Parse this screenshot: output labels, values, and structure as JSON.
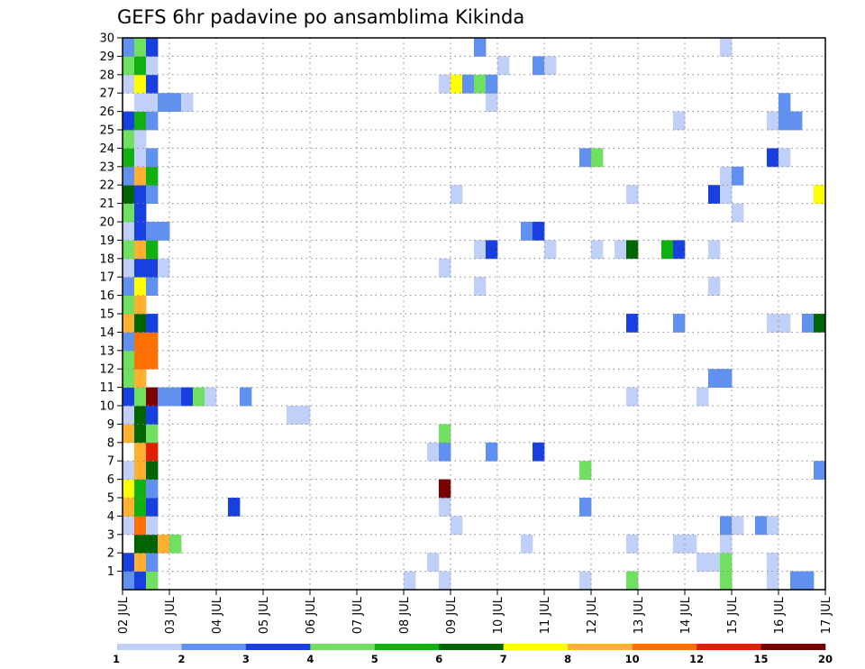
{
  "chart_data": {
    "type": "heatmap",
    "title": "GEFS 6hr padavine po ansamblima Kikinda",
    "x_tick_labels": [
      "02 JUL",
      "03 JUL",
      "04 JUL",
      "05 JUL",
      "06 JUL",
      "07 JUL",
      "08 JUL",
      "09 JUL",
      "10 JUL",
      "11 JUL",
      "12 JUL",
      "13 JUL",
      "14 JUL",
      "15 JUL",
      "16 JUL",
      "17 JUL"
    ],
    "y_tick_labels": [
      "1",
      "2",
      "3",
      "4",
      "5",
      "6",
      "7",
      "8",
      "9",
      "10",
      "11",
      "12",
      "13",
      "14",
      "15",
      "16",
      "17",
      "18",
      "19",
      "20",
      "21",
      "22",
      "23",
      "24",
      "25",
      "26",
      "27",
      "28",
      "29",
      "30"
    ],
    "y_range": [
      0,
      30
    ],
    "time_steps": 60,
    "steps_per_day": 4,
    "grid": "dotted",
    "legend": {
      "position": "bottom",
      "labels": [
        "1",
        "2",
        "3",
        "4",
        "5",
        "6",
        "7",
        "8",
        "10",
        "12",
        "15",
        "20"
      ],
      "colors": [
        "#c0d0f8",
        "#6090f0",
        "#1840e0",
        "#70e060",
        "#10b010",
        "#006400",
        "#ffff00",
        "#ffb030",
        "#ff7000",
        "#e02000",
        "#7a0000"
      ]
    },
    "cells": [
      [
        0,
        0,
        2
      ],
      [
        1,
        0,
        3
      ],
      [
        2,
        0,
        4
      ],
      [
        24,
        0,
        1
      ],
      [
        27,
        0,
        1
      ],
      [
        39,
        0,
        1
      ],
      [
        43,
        0,
        4
      ],
      [
        51,
        0,
        4
      ],
      [
        55,
        0,
        1
      ],
      [
        57,
        0,
        2
      ],
      [
        58,
        0,
        2
      ],
      [
        0,
        1,
        3
      ],
      [
        1,
        1,
        8
      ],
      [
        2,
        1,
        2
      ],
      [
        26,
        1,
        1
      ],
      [
        49,
        1,
        1
      ],
      [
        50,
        1,
        1
      ],
      [
        51,
        1,
        4
      ],
      [
        55,
        1,
        1
      ],
      [
        1,
        2,
        6
      ],
      [
        2,
        2,
        6
      ],
      [
        3,
        2,
        8
      ],
      [
        4,
        2,
        4
      ],
      [
        34,
        2,
        1
      ],
      [
        43,
        2,
        1
      ],
      [
        47,
        2,
        1
      ],
      [
        48,
        2,
        1
      ],
      [
        51,
        2,
        1
      ],
      [
        0,
        3,
        1
      ],
      [
        1,
        3,
        9
      ],
      [
        2,
        3,
        1
      ],
      [
        28,
        3,
        1
      ],
      [
        51,
        3,
        2
      ],
      [
        52,
        3,
        1
      ],
      [
        54,
        3,
        2
      ],
      [
        55,
        3,
        1
      ],
      [
        0,
        4,
        8
      ],
      [
        1,
        4,
        5
      ],
      [
        2,
        4,
        3
      ],
      [
        9,
        4,
        3
      ],
      [
        27,
        4,
        1
      ],
      [
        39,
        4,
        2
      ],
      [
        0,
        5,
        7
      ],
      [
        1,
        5,
        5
      ],
      [
        2,
        5,
        2
      ],
      [
        27,
        5,
        11
      ],
      [
        0,
        6,
        1
      ],
      [
        1,
        6,
        8
      ],
      [
        2,
        6,
        6
      ],
      [
        39,
        6,
        4
      ],
      [
        59,
        6,
        2
      ],
      [
        1,
        7,
        8
      ],
      [
        2,
        7,
        10
      ],
      [
        26,
        7,
        1
      ],
      [
        27,
        7,
        2
      ],
      [
        31,
        7,
        2
      ],
      [
        35,
        7,
        3
      ],
      [
        0,
        8,
        8
      ],
      [
        1,
        8,
        6
      ],
      [
        2,
        8,
        4
      ],
      [
        27,
        8,
        4
      ],
      [
        0,
        9,
        1
      ],
      [
        1,
        9,
        6
      ],
      [
        2,
        9,
        3
      ],
      [
        14,
        9,
        1
      ],
      [
        15,
        9,
        1
      ],
      [
        0,
        10,
        3
      ],
      [
        1,
        10,
        4
      ],
      [
        2,
        10,
        11
      ],
      [
        3,
        10,
        2
      ],
      [
        4,
        10,
        2
      ],
      [
        5,
        10,
        3
      ],
      [
        6,
        10,
        4
      ],
      [
        7,
        10,
        1
      ],
      [
        10,
        10,
        2
      ],
      [
        43,
        10,
        1
      ],
      [
        49,
        10,
        1
      ],
      [
        0,
        11,
        4
      ],
      [
        1,
        11,
        8
      ],
      [
        50,
        11,
        2
      ],
      [
        51,
        11,
        2
      ],
      [
        0,
        12,
        4
      ],
      [
        1,
        12,
        9
      ],
      [
        2,
        12,
        9
      ],
      [
        0,
        13,
        2
      ],
      [
        1,
        13,
        9
      ],
      [
        2,
        13,
        9
      ],
      [
        0,
        14,
        8
      ],
      [
        1,
        14,
        6
      ],
      [
        2,
        14,
        3
      ],
      [
        43,
        14,
        3
      ],
      [
        47,
        14,
        2
      ],
      [
        55,
        14,
        1
      ],
      [
        56,
        14,
        1
      ],
      [
        58,
        14,
        2
      ],
      [
        59,
        14,
        6
      ],
      [
        0,
        15,
        4
      ],
      [
        1,
        15,
        8
      ],
      [
        0,
        16,
        2
      ],
      [
        1,
        16,
        7
      ],
      [
        2,
        16,
        2
      ],
      [
        30,
        16,
        1
      ],
      [
        50,
        16,
        1
      ],
      [
        0,
        17,
        1
      ],
      [
        1,
        17,
        3
      ],
      [
        2,
        17,
        3
      ],
      [
        3,
        17,
        1
      ],
      [
        27,
        17,
        1
      ],
      [
        0,
        18,
        4
      ],
      [
        1,
        18,
        8
      ],
      [
        2,
        18,
        5
      ],
      [
        30,
        18,
        1
      ],
      [
        31,
        18,
        3
      ],
      [
        36,
        18,
        1
      ],
      [
        40,
        18,
        1
      ],
      [
        42,
        18,
        1
      ],
      [
        43,
        18,
        6
      ],
      [
        46,
        18,
        5
      ],
      [
        47,
        18,
        3
      ],
      [
        50,
        18,
        1
      ],
      [
        0,
        19,
        1
      ],
      [
        1,
        19,
        3
      ],
      [
        2,
        19,
        2
      ],
      [
        3,
        19,
        2
      ],
      [
        34,
        19,
        2
      ],
      [
        35,
        19,
        3
      ],
      [
        0,
        20,
        4
      ],
      [
        1,
        20,
        3
      ],
      [
        52,
        20,
        1
      ],
      [
        0,
        21,
        6
      ],
      [
        1,
        21,
        3
      ],
      [
        2,
        21,
        2
      ],
      [
        28,
        21,
        1
      ],
      [
        43,
        21,
        1
      ],
      [
        50,
        21,
        3
      ],
      [
        51,
        21,
        1
      ],
      [
        59,
        21,
        7
      ],
      [
        0,
        22,
        2
      ],
      [
        1,
        22,
        8
      ],
      [
        2,
        22,
        5
      ],
      [
        51,
        22,
        1
      ],
      [
        52,
        22,
        2
      ],
      [
        0,
        23,
        5
      ],
      [
        1,
        23,
        1
      ],
      [
        2,
        23,
        2
      ],
      [
        39,
        23,
        2
      ],
      [
        40,
        23,
        4
      ],
      [
        55,
        23,
        3
      ],
      [
        56,
        23,
        1
      ],
      [
        0,
        24,
        4
      ],
      [
        1,
        24,
        1
      ],
      [
        0,
        25,
        3
      ],
      [
        1,
        25,
        5
      ],
      [
        2,
        25,
        2
      ],
      [
        47,
        25,
        1
      ],
      [
        55,
        25,
        1
      ],
      [
        56,
        25,
        2
      ],
      [
        57,
        25,
        2
      ],
      [
        1,
        26,
        1
      ],
      [
        2,
        26,
        1
      ],
      [
        3,
        26,
        2
      ],
      [
        4,
        26,
        2
      ],
      [
        5,
        26,
        1
      ],
      [
        31,
        26,
        1
      ],
      [
        56,
        26,
        2
      ],
      [
        0,
        27,
        1
      ],
      [
        1,
        27,
        7
      ],
      [
        2,
        27,
        3
      ],
      [
        27,
        27,
        1
      ],
      [
        28,
        27,
        7
      ],
      [
        29,
        27,
        2
      ],
      [
        30,
        27,
        4
      ],
      [
        31,
        27,
        2
      ],
      [
        0,
        28,
        4
      ],
      [
        1,
        28,
        5
      ],
      [
        2,
        28,
        1
      ],
      [
        32,
        28,
        1
      ],
      [
        35,
        28,
        2
      ],
      [
        36,
        28,
        1
      ],
      [
        0,
        29,
        2
      ],
      [
        1,
        29,
        4
      ],
      [
        2,
        29,
        3
      ],
      [
        30,
        29,
        2
      ],
      [
        51,
        29,
        1
      ]
    ]
  }
}
